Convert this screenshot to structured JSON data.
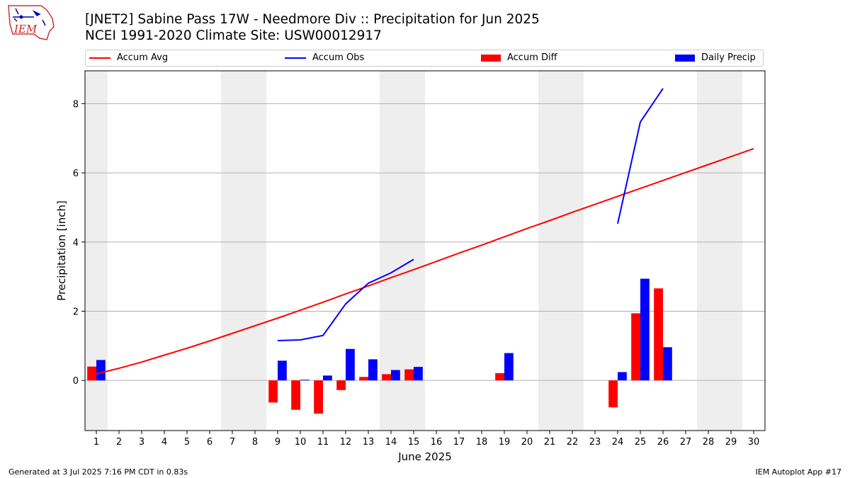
{
  "header": {
    "title_line1": "[JNET2] Sabine Pass 17W - Needmore Div :: Precipitation for Jun 2025",
    "title_line2": "NCEI 1991-2020 Climate Site: USW00012917",
    "logo_text": "IEM"
  },
  "legend": {
    "position": "top",
    "items": [
      {
        "label": "Accum Avg",
        "kind": "line",
        "color": "#ff0000"
      },
      {
        "label": "Accum Obs",
        "kind": "line",
        "color": "#0000ff"
      },
      {
        "label": "Accum Diff",
        "kind": "bar",
        "color": "#ff0000"
      },
      {
        "label": "Daily Precip",
        "kind": "bar",
        "color": "#0000ff"
      }
    ]
  },
  "footer": {
    "left": "Generated at 3 Jul 2025 7:16 PM CDT in 0.83s",
    "right": "IEM Autoplot App #17"
  },
  "chart_data": {
    "type": "bar",
    "xlabel": "June 2025",
    "ylabel": "Precipitation [inch]",
    "xlim": [
      0.5,
      30.5
    ],
    "ylim": [
      -1.45,
      8.95
    ],
    "x_ticks": [
      1,
      2,
      3,
      4,
      5,
      6,
      7,
      8,
      9,
      10,
      11,
      12,
      13,
      14,
      15,
      16,
      17,
      18,
      19,
      20,
      21,
      22,
      23,
      24,
      25,
      26,
      27,
      28,
      29,
      30
    ],
    "y_ticks": [
      0,
      2,
      4,
      6,
      8
    ],
    "grid": "horizontal",
    "weekend_shading": [
      [
        0.5,
        1.5
      ],
      [
        6.5,
        8.5
      ],
      [
        13.5,
        15.5
      ],
      [
        20.5,
        22.5
      ],
      [
        27.5,
        29.5
      ]
    ],
    "accum_avg": {
      "name": "Accum Avg",
      "color": "#ff0000",
      "x": [
        1,
        2,
        3,
        4,
        5,
        6,
        7,
        8,
        9,
        10,
        11,
        12,
        13,
        14,
        15,
        16,
        17,
        18,
        19,
        20,
        21,
        22,
        23,
        24,
        25,
        26,
        27,
        28,
        29,
        30
      ],
      "y": [
        0.19,
        0.35,
        0.53,
        0.73,
        0.93,
        1.14,
        1.36,
        1.58,
        1.8,
        2.03,
        2.26,
        2.5,
        2.73,
        2.97,
        3.2,
        3.44,
        3.68,
        3.91,
        4.15,
        4.39,
        4.62,
        4.86,
        5.09,
        5.32,
        5.55,
        5.78,
        6.01,
        6.24,
        6.47,
        6.7
      ]
    },
    "accum_obs": {
      "name": "Accum Obs",
      "color": "#0000ff",
      "segments": [
        {
          "x": [
            9,
            10,
            11,
            12,
            13,
            14,
            15
          ],
          "y": [
            1.15,
            1.17,
            1.3,
            2.21,
            2.81,
            3.11,
            3.5
          ]
        },
        {
          "x": [
            24,
            25,
            26
          ],
          "y": [
            4.53,
            7.47,
            8.44
          ]
        }
      ]
    },
    "accum_diff": {
      "name": "Accum Diff",
      "color": "#ff0000",
      "x": [
        1,
        9,
        10,
        11,
        12,
        13,
        14,
        15,
        19,
        24,
        25,
        26
      ],
      "values": [
        0.4,
        -0.64,
        -0.85,
        -0.96,
        -0.28,
        0.1,
        0.18,
        0.32,
        0.21,
        -0.78,
        1.94,
        2.66
      ]
    },
    "daily_precip": {
      "name": "Daily Precip",
      "color": "#0000ff",
      "x": [
        1,
        9,
        10,
        11,
        12,
        13,
        14,
        15,
        19,
        24,
        25,
        26
      ],
      "values": [
        0.59,
        0.57,
        0.02,
        0.14,
        0.91,
        0.61,
        0.3,
        0.39,
        0.79,
        0.24,
        2.94,
        0.96
      ]
    }
  }
}
